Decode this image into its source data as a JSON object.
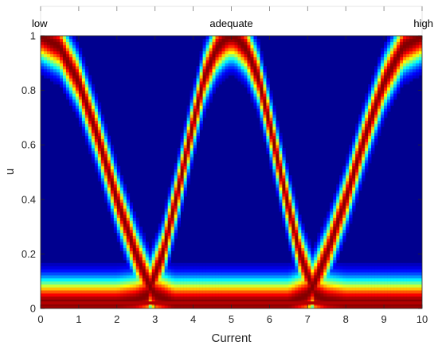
{
  "chart_data": {
    "type": "heatmap",
    "title": "",
    "xlabel": "Current",
    "ylabel": "u",
    "xlim": [
      0,
      10
    ],
    "ylim": [
      0,
      1
    ],
    "xticks": [
      "0",
      "1",
      "2",
      "3",
      "4",
      "5",
      "6",
      "7",
      "8",
      "9",
      "10"
    ],
    "yticks": [
      "0",
      "0.2",
      "0.4",
      "0.6",
      "0.8",
      "1"
    ],
    "grid": false,
    "colormap": "jet",
    "background_color": "#00008f",
    "annotations": [
      {
        "text": "low",
        "x": 0
      },
      {
        "text": "adequate",
        "x": 5
      },
      {
        "text": "high",
        "x": 10
      }
    ],
    "series": [
      {
        "x": [
          0,
          0.5,
          1,
          1.5,
          2,
          2.5,
          2.8,
          3,
          3.5,
          4,
          4.5,
          5
        ],
        "y": [
          1,
          0.96,
          0.83,
          0.63,
          0.4,
          0.2,
          0.1,
          0.05,
          0.02,
          0.02,
          0.02,
          0.02
        ]
      },
      {
        "x": [
          0,
          1,
          2,
          2.5,
          2.8,
          3.2,
          3.6,
          4,
          4.3,
          4.6,
          4.85,
          5
        ],
        "y": [
          0.02,
          0.02,
          0.02,
          0.03,
          0.05,
          0.2,
          0.43,
          0.68,
          0.85,
          0.95,
          0.99,
          1
        ]
      },
      {
        "x": [
          5,
          5.15,
          5.4,
          5.7,
          6,
          6.4,
          6.8,
          7.2,
          7.5,
          8,
          9,
          10
        ],
        "y": [
          1,
          0.99,
          0.95,
          0.85,
          0.68,
          0.43,
          0.2,
          0.05,
          0.03,
          0.02,
          0.02,
          0.02
        ]
      },
      {
        "x": [
          5,
          5.5,
          6,
          6.5,
          7,
          7.2,
          7.5,
          8,
          8.5,
          9,
          9.5,
          10
        ],
        "y": [
          0.02,
          0.02,
          0.02,
          0.02,
          0.05,
          0.1,
          0.2,
          0.4,
          0.63,
          0.83,
          0.96,
          1
        ]
      }
    ],
    "baseline": {
      "y": 0.02
    }
  }
}
